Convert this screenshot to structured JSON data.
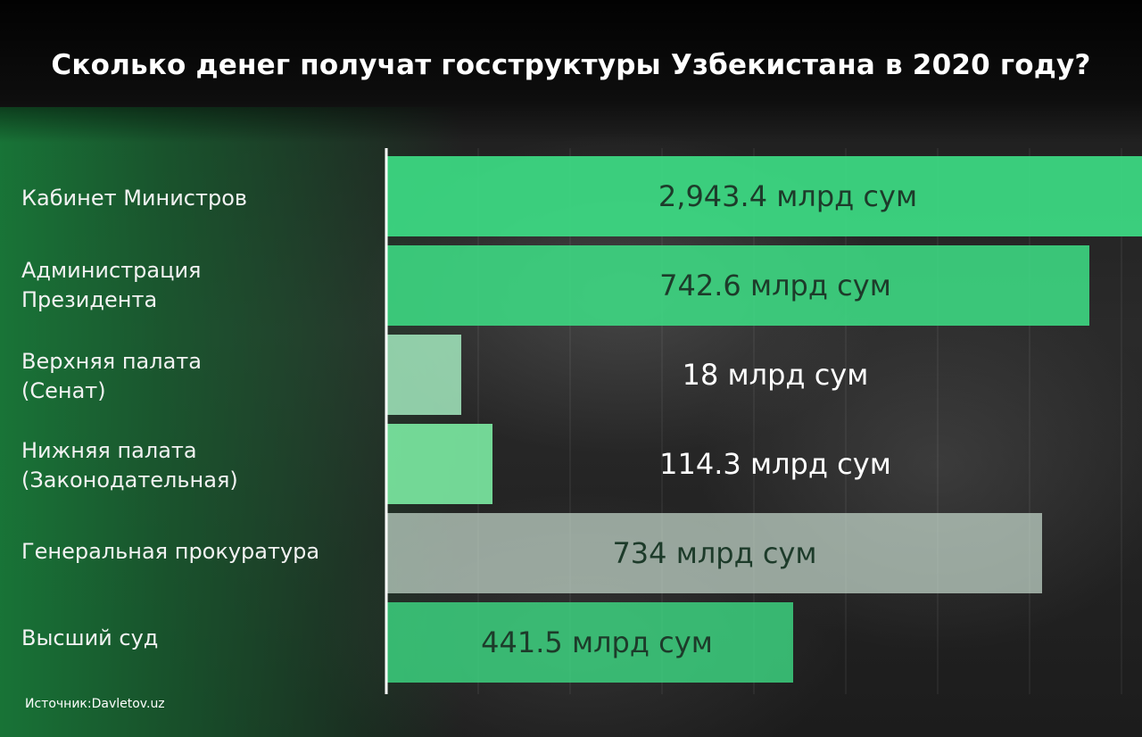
{
  "title": "Сколько денег получат госструктуры Узбекистана в 2020 году?",
  "source": "Источник:Davletov.uz",
  "colors": {
    "bar_bright": "#3ddc84",
    "bar_pale": "#a8f0c4",
    "bar_light": "#7ef0a6",
    "bar_gray": "#c9ddd0",
    "label_dark": "#1d3b2a",
    "label_white": "#ffffff"
  },
  "chart_data": {
    "type": "bar",
    "orientation": "horizontal",
    "title": "Сколько денег получат госструктуры Узбекистана в 2020 году?",
    "categories": [
      "Кабинет Министров",
      "Администрация\nПрезидента",
      "Верхняя палата\n(Сенат)",
      "Нижняя палата\n(Законодательная)",
      "Генеральная прокуратура",
      "Высший суд"
    ],
    "values": [
      2943.4,
      742.6,
      18,
      114.3,
      734,
      441.5
    ],
    "data_labels": [
      "2,943.4  млрд сум",
      "742.6 млрд сум",
      "18 млрд сум",
      "114.3 млрд сум",
      "734 млрд сум",
      "441.5 млрд сум"
    ],
    "unit": "млрд сум",
    "grid": true,
    "legend": "none"
  }
}
